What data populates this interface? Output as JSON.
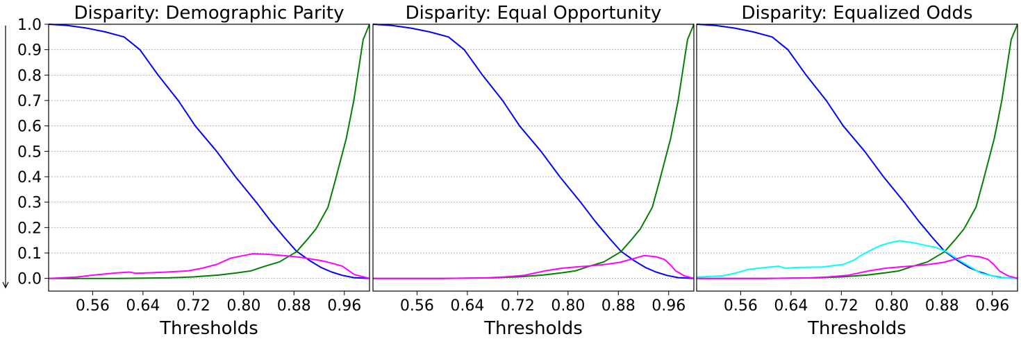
{
  "figure": {
    "y_arrow": "down-arrow",
    "shared_ytick_labels": [
      "0.0",
      "0.1",
      "0.2",
      "0.3",
      "0.4",
      "0.5",
      "0.6",
      "0.7",
      "0.8",
      "0.9",
      "1.0"
    ]
  },
  "chart_data": [
    {
      "type": "line",
      "title": "Disparity: Demographic Parity",
      "xlabel": "Thresholds",
      "ylabel": "",
      "xlim": [
        0.49,
        1.0
      ],
      "ylim": [
        -0.05,
        1.0
      ],
      "xticks": [
        0.56,
        0.64,
        0.72,
        0.8,
        0.88,
        0.96
      ],
      "xtick_labels": [
        "0.56",
        "0.64",
        "0.72",
        "0.80",
        "0.88",
        "0.96"
      ],
      "yticks": [
        0.0,
        0.1,
        0.2,
        0.3,
        0.4,
        0.5,
        0.6,
        0.7,
        0.8,
        0.9,
        1.0
      ],
      "grid": "horizontal dotted",
      "legend": "none",
      "series": [
        {
          "name": "blue",
          "color": "#0000ff",
          "x": [
            0.49,
            0.52,
            0.55,
            0.58,
            0.61,
            0.635,
            0.664,
            0.696,
            0.723,
            0.757,
            0.787,
            0.82,
            0.843,
            0.865,
            0.884,
            0.905,
            0.923,
            0.94,
            0.957,
            0.975,
            1.0
          ],
          "y": [
            1.0,
            0.995,
            0.985,
            0.97,
            0.95,
            0.9,
            0.8,
            0.7,
            0.6,
            0.5,
            0.4,
            0.3,
            0.225,
            0.16,
            0.107,
            0.07,
            0.043,
            0.025,
            0.012,
            0.003,
            0.0
          ]
        },
        {
          "name": "green",
          "color": "#008000",
          "x": [
            0.49,
            0.6,
            0.68,
            0.72,
            0.76,
            0.79,
            0.812,
            0.834,
            0.857,
            0.884,
            0.9,
            0.915,
            0.934,
            0.945,
            0.963,
            0.975,
            0.99,
            1.0
          ],
          "y": [
            0.0,
            0.0,
            0.002,
            0.006,
            0.013,
            0.022,
            0.03,
            0.048,
            0.065,
            0.105,
            0.15,
            0.195,
            0.28,
            0.38,
            0.55,
            0.7,
            0.94,
            1.0
          ]
        },
        {
          "name": "magenta",
          "color": "#ff00ff",
          "x": [
            0.49,
            0.534,
            0.568,
            0.6,
            0.618,
            0.629,
            0.65,
            0.678,
            0.712,
            0.734,
            0.757,
            0.78,
            0.8,
            0.815,
            0.834,
            0.852,
            0.871,
            0.89,
            0.923,
            0.94,
            0.957,
            0.976,
            1.0
          ],
          "y": [
            0.0,
            0.005,
            0.015,
            0.022,
            0.025,
            0.02,
            0.022,
            0.025,
            0.03,
            0.04,
            0.055,
            0.08,
            0.09,
            0.097,
            0.095,
            0.092,
            0.088,
            0.083,
            0.07,
            0.06,
            0.048,
            0.015,
            0.0
          ]
        }
      ]
    },
    {
      "type": "line",
      "title": "Disparity: Equal Opportunity",
      "xlabel": "Thresholds",
      "ylabel": "",
      "xlim": [
        0.49,
        1.0
      ],
      "ylim": [
        -0.05,
        1.0
      ],
      "xticks": [
        0.56,
        0.64,
        0.72,
        0.8,
        0.88,
        0.96
      ],
      "xtick_labels": [
        "0.56",
        "0.64",
        "0.72",
        "0.80",
        "0.88",
        "0.96"
      ],
      "grid": "horizontal dotted",
      "legend": "none",
      "series": [
        {
          "name": "blue",
          "color": "#0000ff",
          "x": [
            0.49,
            0.52,
            0.55,
            0.58,
            0.61,
            0.635,
            0.664,
            0.696,
            0.723,
            0.757,
            0.787,
            0.82,
            0.843,
            0.865,
            0.884,
            0.905,
            0.923,
            0.94,
            0.957,
            0.975,
            1.0
          ],
          "y": [
            1.0,
            0.995,
            0.985,
            0.97,
            0.95,
            0.9,
            0.8,
            0.7,
            0.6,
            0.5,
            0.4,
            0.3,
            0.225,
            0.16,
            0.107,
            0.07,
            0.043,
            0.025,
            0.012,
            0.003,
            0.0
          ]
        },
        {
          "name": "green",
          "color": "#008000",
          "x": [
            0.49,
            0.6,
            0.68,
            0.72,
            0.76,
            0.79,
            0.812,
            0.834,
            0.857,
            0.884,
            0.9,
            0.915,
            0.934,
            0.945,
            0.963,
            0.975,
            0.99,
            1.0
          ],
          "y": [
            0.0,
            0.0,
            0.002,
            0.006,
            0.013,
            0.022,
            0.03,
            0.048,
            0.065,
            0.105,
            0.15,
            0.195,
            0.28,
            0.38,
            0.55,
            0.7,
            0.94,
            1.0
          ]
        },
        {
          "name": "magenta",
          "color": "#ff00ff",
          "x": [
            0.49,
            0.6,
            0.67,
            0.7,
            0.73,
            0.764,
            0.79,
            0.812,
            0.84,
            0.862,
            0.882,
            0.9,
            0.921,
            0.94,
            0.953,
            0.962,
            0.971,
            0.985,
            1.0
          ],
          "y": [
            0.0,
            0.0,
            0.002,
            0.006,
            0.012,
            0.03,
            0.04,
            0.045,
            0.05,
            0.056,
            0.063,
            0.075,
            0.09,
            0.085,
            0.075,
            0.055,
            0.03,
            0.01,
            0.0
          ]
        }
      ]
    },
    {
      "type": "line",
      "title": "Disparity: Equalized Odds",
      "xlabel": "Thresholds",
      "ylabel": "",
      "xlim": [
        0.49,
        1.0
      ],
      "ylim": [
        -0.05,
        1.0
      ],
      "xticks": [
        0.56,
        0.64,
        0.72,
        0.8,
        0.88,
        0.96
      ],
      "xtick_labels": [
        "0.56",
        "0.64",
        "0.72",
        "0.80",
        "0.88",
        "0.96"
      ],
      "grid": "horizontal dotted",
      "legend": "none",
      "series": [
        {
          "name": "blue",
          "color": "#0000ff",
          "x": [
            0.49,
            0.52,
            0.55,
            0.58,
            0.61,
            0.635,
            0.664,
            0.696,
            0.723,
            0.757,
            0.787,
            0.82,
            0.843,
            0.865,
            0.884,
            0.905,
            0.923,
            0.94,
            0.957,
            0.975,
            1.0
          ],
          "y": [
            1.0,
            0.995,
            0.985,
            0.97,
            0.95,
            0.9,
            0.8,
            0.7,
            0.6,
            0.5,
            0.4,
            0.3,
            0.225,
            0.16,
            0.107,
            0.07,
            0.043,
            0.025,
            0.012,
            0.003,
            0.0
          ]
        },
        {
          "name": "green",
          "color": "#008000",
          "x": [
            0.49,
            0.6,
            0.68,
            0.72,
            0.76,
            0.79,
            0.812,
            0.834,
            0.857,
            0.884,
            0.9,
            0.915,
            0.934,
            0.945,
            0.963,
            0.975,
            0.99,
            1.0
          ],
          "y": [
            0.0,
            0.0,
            0.002,
            0.006,
            0.013,
            0.022,
            0.03,
            0.048,
            0.065,
            0.105,
            0.15,
            0.195,
            0.28,
            0.38,
            0.55,
            0.7,
            0.94,
            1.0
          ]
        },
        {
          "name": "cyan",
          "color": "#00ffff",
          "x": [
            0.49,
            0.531,
            0.55,
            0.572,
            0.6,
            0.62,
            0.631,
            0.65,
            0.69,
            0.723,
            0.74,
            0.753,
            0.77,
            0.783,
            0.8,
            0.812,
            0.835,
            0.857,
            0.87,
            0.887,
            0.905,
            0.925,
            0.942,
            0.96,
            0.972,
            1.0
          ],
          "y": [
            0.005,
            0.01,
            0.02,
            0.035,
            0.043,
            0.048,
            0.04,
            0.043,
            0.045,
            0.055,
            0.072,
            0.093,
            0.115,
            0.13,
            0.142,
            0.148,
            0.14,
            0.128,
            0.122,
            0.105,
            0.075,
            0.045,
            0.02,
            0.01,
            0.003,
            0.0
          ]
        },
        {
          "name": "magenta",
          "color": "#ff00ff",
          "x": [
            0.49,
            0.6,
            0.67,
            0.7,
            0.73,
            0.764,
            0.79,
            0.812,
            0.84,
            0.862,
            0.882,
            0.9,
            0.921,
            0.94,
            0.953,
            0.962,
            0.971,
            0.985,
            1.0
          ],
          "y": [
            0.0,
            0.0,
            0.002,
            0.006,
            0.012,
            0.03,
            0.04,
            0.045,
            0.05,
            0.056,
            0.063,
            0.075,
            0.09,
            0.085,
            0.075,
            0.055,
            0.03,
            0.01,
            0.0
          ]
        }
      ]
    }
  ]
}
